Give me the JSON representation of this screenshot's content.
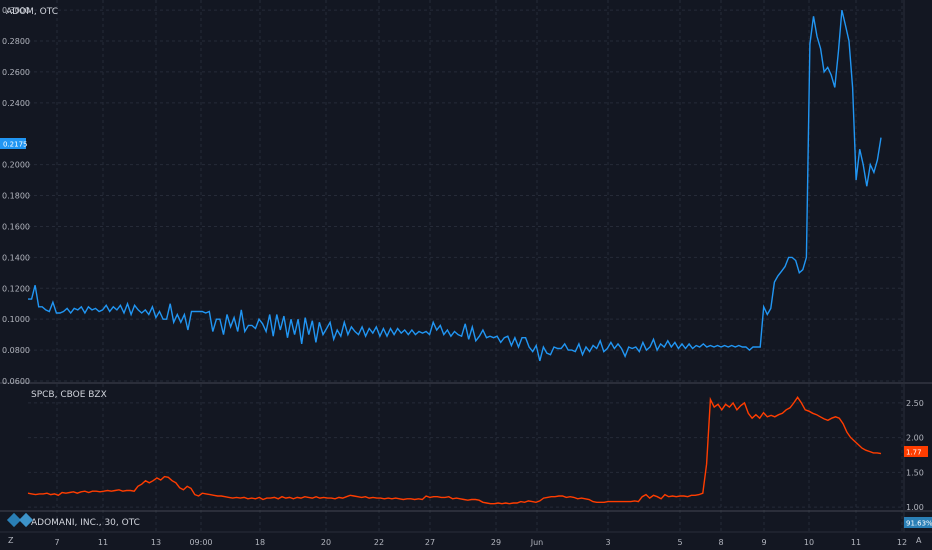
{
  "colors": {
    "background": "#131722",
    "grid": "#262b38",
    "separator": "#434651",
    "text": "#b2b5be",
    "adom_line": "#2196f3",
    "spcb_line": "#ff3d00",
    "adomani_badge": "#2a7fb6"
  },
  "chart_data": [
    {
      "type": "line",
      "title": "ADOM, OTC",
      "xlabel": "",
      "ylabel": "",
      "x_tick_labels": [
        "7",
        "11",
        "13",
        "09:00",
        "18",
        "20",
        "22",
        "27",
        "29",
        "Jun",
        "3",
        "5",
        "8",
        "9",
        "10",
        "11",
        "12"
      ],
      "y_tick_labels": [
        "0.0600",
        "0.0800",
        "0.1000",
        "0.1200",
        "0.1400",
        "0.1600",
        "0.1800",
        "0.2000",
        "0.2400",
        "0.2600",
        "0.2800",
        "0.3000"
      ],
      "ylim": [
        0.06,
        0.302
      ],
      "last_value": "0.2175",
      "grid": true,
      "series": [
        {
          "values": [
            0.113,
            0.113,
            0.122,
            0.108,
            0.108,
            0.106,
            0.105,
            0.111,
            0.104,
            0.104,
            0.105,
            0.107,
            0.104,
            0.107,
            0.106,
            0.108,
            0.104,
            0.108,
            0.106,
            0.107,
            0.105,
            0.106,
            0.109,
            0.105,
            0.108,
            0.106,
            0.109,
            0.104,
            0.11,
            0.103,
            0.109,
            0.106,
            0.104,
            0.106,
            0.103,
            0.108,
            0.101,
            0.105,
            0.1,
            0.1,
            0.11,
            0.098,
            0.103,
            0.098,
            0.103,
            0.093,
            0.105,
            0.105,
            0.105,
            0.105,
            0.104,
            0.105,
            0.092,
            0.1,
            0.1,
            0.09,
            0.103,
            0.095,
            0.101,
            0.092,
            0.106,
            0.092,
            0.096,
            0.096,
            0.094,
            0.1,
            0.097,
            0.092,
            0.103,
            0.089,
            0.103,
            0.093,
            0.102,
            0.088,
            0.1,
            0.09,
            0.1,
            0.084,
            0.101,
            0.09,
            0.099,
            0.085,
            0.098,
            0.09,
            0.094,
            0.098,
            0.087,
            0.093,
            0.089,
            0.098,
            0.09,
            0.095,
            0.092,
            0.09,
            0.095,
            0.089,
            0.094,
            0.091,
            0.095,
            0.089,
            0.094,
            0.089,
            0.094,
            0.09,
            0.094,
            0.091,
            0.093,
            0.09,
            0.093,
            0.09,
            0.092,
            0.091,
            0.092,
            0.09,
            0.098,
            0.093,
            0.096,
            0.09,
            0.093,
            0.089,
            0.092,
            0.09,
            0.089,
            0.097,
            0.087,
            0.095,
            0.086,
            0.089,
            0.093,
            0.088,
            0.089,
            0.088,
            0.089,
            0.085,
            0.088,
            0.089,
            0.083,
            0.088,
            0.082,
            0.088,
            0.088,
            0.082,
            0.079,
            0.083,
            0.073,
            0.082,
            0.078,
            0.077,
            0.082,
            0.081,
            0.081,
            0.084,
            0.08,
            0.08,
            0.079,
            0.084,
            0.077,
            0.082,
            0.079,
            0.083,
            0.081,
            0.086,
            0.079,
            0.081,
            0.085,
            0.081,
            0.084,
            0.081,
            0.076,
            0.082,
            0.081,
            0.082,
            0.079,
            0.085,
            0.08,
            0.082,
            0.087,
            0.08,
            0.084,
            0.082,
            0.086,
            0.082,
            0.085,
            0.081,
            0.084,
            0.081,
            0.084,
            0.081,
            0.083,
            0.082,
            0.084,
            0.082,
            0.083,
            0.082,
            0.083,
            0.082,
            0.083,
            0.082,
            0.083,
            0.082,
            0.083,
            0.082,
            0.082,
            0.08,
            0.082,
            0.082,
            0.082,
            0.108,
            0.103,
            0.107,
            0.124,
            0.128,
            0.131,
            0.134,
            0.14,
            0.14,
            0.138,
            0.13,
            0.132,
            0.14,
            0.278,
            0.296,
            0.283,
            0.275,
            0.26,
            0.263,
            0.258,
            0.25,
            0.273,
            0.3,
            0.29,
            0.28,
            0.25,
            0.19,
            0.21,
            0.2,
            0.186,
            0.2,
            0.195,
            0.203,
            0.2175
          ]
        }
      ]
    },
    {
      "type": "line",
      "title": "SPCB, CBOE BZX",
      "xlabel": "",
      "ylabel": "",
      "y_tick_labels": [
        "1.00",
        "1.50",
        "2.00",
        "2.50"
      ],
      "ylim": [
        0.93,
        2.7
      ],
      "last_value": "1.77",
      "grid": true,
      "series": [
        {
          "values": [
            1.2,
            1.19,
            1.18,
            1.19,
            1.19,
            1.2,
            1.18,
            1.19,
            1.17,
            1.21,
            1.2,
            1.21,
            1.22,
            1.2,
            1.22,
            1.23,
            1.21,
            1.23,
            1.23,
            1.22,
            1.23,
            1.24,
            1.23,
            1.24,
            1.25,
            1.23,
            1.24,
            1.24,
            1.23,
            1.3,
            1.33,
            1.38,
            1.35,
            1.38,
            1.42,
            1.39,
            1.44,
            1.43,
            1.38,
            1.35,
            1.28,
            1.25,
            1.3,
            1.27,
            1.18,
            1.16,
            1.2,
            1.19,
            1.18,
            1.17,
            1.16,
            1.16,
            1.15,
            1.14,
            1.13,
            1.14,
            1.13,
            1.14,
            1.12,
            1.13,
            1.12,
            1.14,
            1.11,
            1.13,
            1.13,
            1.14,
            1.12,
            1.15,
            1.13,
            1.14,
            1.12,
            1.14,
            1.13,
            1.15,
            1.14,
            1.13,
            1.15,
            1.13,
            1.14,
            1.13,
            1.13,
            1.12,
            1.14,
            1.13,
            1.15,
            1.17,
            1.16,
            1.15,
            1.14,
            1.15,
            1.13,
            1.14,
            1.13,
            1.13,
            1.12,
            1.13,
            1.12,
            1.13,
            1.12,
            1.11,
            1.12,
            1.12,
            1.11,
            1.12,
            1.11,
            1.16,
            1.14,
            1.15,
            1.15,
            1.14,
            1.14,
            1.15,
            1.12,
            1.13,
            1.12,
            1.11,
            1.1,
            1.11,
            1.11,
            1.1,
            1.07,
            1.06,
            1.05,
            1.05,
            1.06,
            1.05,
            1.06,
            1.05,
            1.06,
            1.06,
            1.08,
            1.07,
            1.09,
            1.08,
            1.07,
            1.09,
            1.13,
            1.14,
            1.15,
            1.15,
            1.16,
            1.16,
            1.14,
            1.15,
            1.14,
            1.12,
            1.13,
            1.12,
            1.11,
            1.08,
            1.07,
            1.07,
            1.07,
            1.08,
            1.08,
            1.08,
            1.08,
            1.08,
            1.08,
            1.08,
            1.09,
            1.08,
            1.15,
            1.18,
            1.13,
            1.17,
            1.15,
            1.12,
            1.18,
            1.15,
            1.16,
            1.15,
            1.16,
            1.16,
            1.15,
            1.17,
            1.17,
            1.18,
            1.2,
            1.62,
            2.55,
            2.44,
            2.48,
            2.4,
            2.48,
            2.44,
            2.5,
            2.4,
            2.46,
            2.5,
            2.35,
            2.28,
            2.33,
            2.28,
            2.36,
            2.3,
            2.32,
            2.3,
            2.33,
            2.35,
            2.4,
            2.43,
            2.5,
            2.58,
            2.5,
            2.4,
            2.38,
            2.35,
            2.33,
            2.3,
            2.27,
            2.25,
            2.28,
            2.3,
            2.28,
            2.2,
            2.08,
            2.0,
            1.95,
            1.9,
            1.85,
            1.82,
            1.8,
            1.78,
            1.78,
            1.77
          ]
        }
      ]
    },
    {
      "type": "line",
      "title": "ADOMANI, INC., 30, OTC",
      "last_value": "91.63%",
      "series": []
    }
  ]
}
